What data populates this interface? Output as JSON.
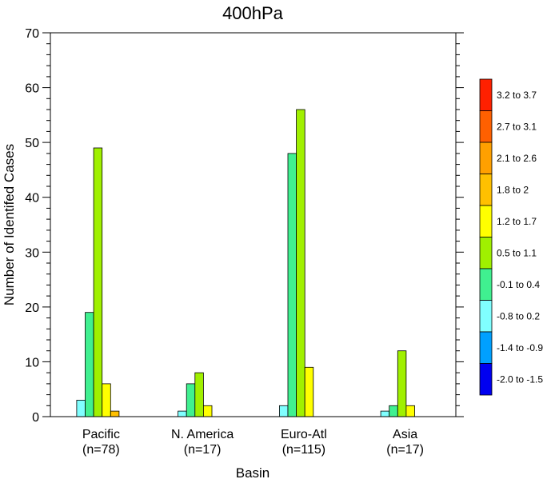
{
  "chart_data": {
    "type": "bar",
    "title": "400hPa",
    "xlabel": "Basin",
    "ylabel": "Number of Identifed Cases",
    "ylim": [
      0,
      70
    ],
    "yticks": [
      0,
      10,
      20,
      30,
      40,
      50,
      60,
      70
    ],
    "y_minor_step": 2,
    "grid": false,
    "legend_position": "right",
    "categories": [
      {
        "name": "Pacific",
        "count_label": "(n=78)"
      },
      {
        "name": "N. America",
        "count_label": "(n=17)"
      },
      {
        "name": "Euro-Atl",
        "count_label": "(n=115)"
      },
      {
        "name": "Asia",
        "count_label": "(n=17)"
      }
    ],
    "series": [
      {
        "name": "-2.0 to -1.5",
        "color": "#0000f0",
        "values": [
          0,
          0,
          0,
          0
        ]
      },
      {
        "name": "-1.4 to -0.9",
        "color": "#00a0ff",
        "values": [
          0,
          0,
          0,
          0
        ]
      },
      {
        "name": "-0.8 to 0.2",
        "color": "#80ffff",
        "values": [
          3,
          1,
          2,
          1
        ]
      },
      {
        "name": "-0.1 to 0.4",
        "color": "#40f090",
        "values": [
          19,
          6,
          48,
          2
        ]
      },
      {
        "name": "0.5 to 1.1",
        "color": "#a0f000",
        "values": [
          49,
          8,
          56,
          12
        ]
      },
      {
        "name": "1.2 to 1.7",
        "color": "#ffff00",
        "values": [
          6,
          2,
          9,
          2
        ]
      },
      {
        "name": "1.8 to 2",
        "color": "#ffc000",
        "values": [
          1,
          0,
          0,
          0
        ]
      },
      {
        "name": "2.1 to 2.6",
        "color": "#ffa000",
        "values": [
          0,
          0,
          0,
          0
        ]
      },
      {
        "name": "2.7 to 3.1",
        "color": "#ff6000",
        "values": [
          0,
          0,
          0,
          0
        ]
      },
      {
        "name": "3.2 to 3.7",
        "color": "#ff2000",
        "values": [
          0,
          0,
          0,
          0
        ]
      }
    ]
  }
}
